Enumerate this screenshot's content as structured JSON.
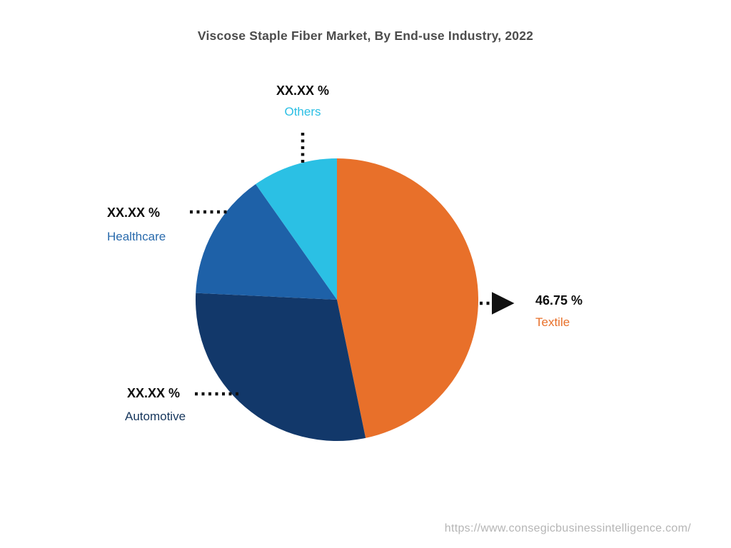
{
  "page": {
    "title": "Viscose Staple Fiber Market, By End-use Industry, 2022",
    "source_url": "https://www.consegicbusinessintelligence.com/"
  },
  "chart_data": {
    "type": "pie",
    "title": "Viscose Staple Fiber Market, By End-use Industry, 2022",
    "year": "2022",
    "start_angle_deg": 0,
    "direction": "clockwise",
    "legend_position": "labels-with-leader-lines",
    "slices": [
      {
        "id": "textile",
        "label": "Textile",
        "value_label": "46.75 %",
        "value_pct": 46.75,
        "color": "#E8702A",
        "label_color": "#E8702A"
      },
      {
        "id": "automotive",
        "label": "Automotive",
        "value_label": "XX.XX %",
        "value_pct": 29.0,
        "color": "#12386A",
        "label_color": "#16365C"
      },
      {
        "id": "healthcare",
        "label": "Healthcare",
        "value_label": "XX.XX %",
        "value_pct": 14.5,
        "color": "#1E61A8",
        "label_color": "#2A6BAD"
      },
      {
        "id": "others",
        "label": "Others",
        "value_label": "XX.XX %",
        "value_pct": 9.75,
        "color": "#2BC0E4",
        "label_color": "#2BBFE4"
      }
    ]
  }
}
